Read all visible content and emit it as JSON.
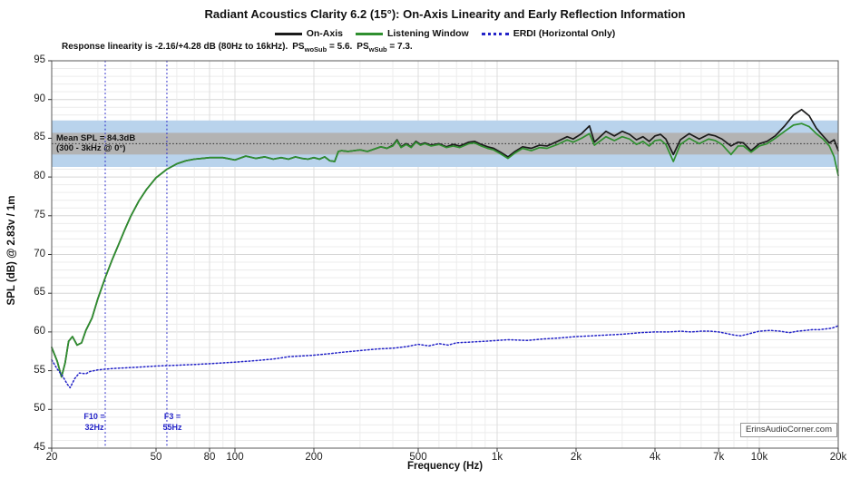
{
  "header": {
    "title": "Radiant Acoustics Clarity 6.2 (15°): On-Axis Linearity and Early Reflection Information"
  },
  "legend": {
    "items": [
      {
        "label": "On-Axis",
        "color": "#1b1b1b",
        "style": "solid"
      },
      {
        "label": "Listening Window",
        "color": "#2f8f2f",
        "style": "solid"
      },
      {
        "label": "ERDI (Horizontal Only)",
        "color": "#2424c8",
        "style": "dotted"
      }
    ]
  },
  "annotation": {
    "prefix": "Response linearity is -2.16/+4.28 dB (80Hz to 16kHz). ",
    "ps1_base": "PS",
    "ps1_sub": "woSub",
    "ps1_value": " = 5.6. ",
    "ps2_base": "PS",
    "ps2_sub": "wSub",
    "ps2_value": " = 7.3."
  },
  "watermark": "ErinsAudioCorner.com",
  "axes": {
    "x_title": "Frequency (Hz)",
    "y_title": "SPL (dB) @ 2.83v / 1m"
  },
  "chart_data": {
    "type": "line",
    "title": "Radiant Acoustics Clarity 6.2 (15°): On-Axis Linearity and Early Reflection Information",
    "xlabel": "Frequency (Hz)",
    "ylabel": "SPL (dB) @ 2.83v / 1m",
    "x_scale": "log",
    "xlim": [
      20,
      20000
    ],
    "ylim": [
      45,
      95
    ],
    "grid": true,
    "legend_position": "top-center",
    "x_ticks": [
      {
        "f": 20,
        "label": "20"
      },
      {
        "f": 50,
        "label": "50"
      },
      {
        "f": 80,
        "label": "80"
      },
      {
        "f": 100,
        "label": "100"
      },
      {
        "f": 200,
        "label": "200"
      },
      {
        "f": 500,
        "label": "500"
      },
      {
        "f": 1000,
        "label": "1k"
      },
      {
        "f": 2000,
        "label": "2k"
      },
      {
        "f": 4000,
        "label": "4k"
      },
      {
        "f": 7000,
        "label": "7k"
      },
      {
        "f": 10000,
        "label": "10k"
      },
      {
        "f": 20000,
        "label": "20k"
      }
    ],
    "y_ticks": [
      {
        "v": 95,
        "label": "95"
      },
      {
        "v": 90,
        "label": "90"
      },
      {
        "v": 85,
        "label": "85"
      },
      {
        "v": 80,
        "label": "80"
      },
      {
        "v": 75,
        "label": "75"
      },
      {
        "v": 70,
        "label": "70"
      },
      {
        "v": 65,
        "label": "65"
      },
      {
        "v": 60,
        "label": "60"
      },
      {
        "v": 55,
        "label": "55"
      },
      {
        "v": 50,
        "label": "50"
      },
      {
        "v": 45,
        "label": "45"
      }
    ],
    "bands": [
      {
        "name": "blue-3db-window",
        "color": "#b9d3ec",
        "from": 81.3,
        "to": 87.3
      },
      {
        "name": "gray-linearity-window",
        "color": "#b3b3b3",
        "from": 82.9,
        "to": 85.7
      }
    ],
    "mean_spl": {
      "value": 84.3,
      "label_line1": "Mean SPL = 84.3dB",
      "label_line2": "(300 - 3kHz @ 0°)"
    },
    "f_markers": [
      {
        "freq": 32,
        "line1": "F10 =",
        "line2": "32Hz"
      },
      {
        "freq": 55,
        "line1": "F3 =",
        "line2": "55Hz"
      }
    ],
    "series": [
      {
        "name": "On-Axis",
        "color": "#1b1b1b",
        "style": "solid",
        "width": 1.7,
        "freq": [
          20,
          21,
          21.8,
          22.5,
          23.2,
          24,
          25,
          26,
          27,
          28.5,
          30,
          32,
          34,
          36,
          38,
          40,
          43,
          46,
          50,
          55,
          60,
          65,
          70,
          75,
          80,
          90,
          100,
          110,
          120,
          130,
          140,
          150,
          160,
          170,
          180,
          190,
          200,
          210,
          220,
          230,
          240,
          248,
          255,
          270,
          285,
          300,
          320,
          340,
          360,
          380,
          400,
          415,
          430,
          450,
          470,
          490,
          510,
          530,
          560,
          600,
          640,
          680,
          720,
          780,
          820,
          870,
          920,
          970,
          1030,
          1100,
          1170,
          1250,
          1350,
          1450,
          1550,
          1700,
          1850,
          1950,
          2100,
          2250,
          2350,
          2600,
          2800,
          3000,
          3200,
          3400,
          3600,
          3800,
          4000,
          4200,
          4400,
          4700,
          5000,
          5400,
          5900,
          6400,
          6800,
          7200,
          7800,
          8300,
          8700,
          9300,
          10000,
          10700,
          11500,
          12500,
          13500,
          14500,
          15500,
          16500,
          17500,
          18500,
          19300,
          20000
        ],
        "spl": [
          58.0,
          56.2,
          54.2,
          56.0,
          58.8,
          59.4,
          58.3,
          58.6,
          60.2,
          61.8,
          64.3,
          67.0,
          69.3,
          71.3,
          73.2,
          74.9,
          76.9,
          78.4,
          79.9,
          81.0,
          81.7,
          82.1,
          82.3,
          82.4,
          82.5,
          82.5,
          82.2,
          82.7,
          82.4,
          82.6,
          82.3,
          82.5,
          82.3,
          82.6,
          82.4,
          82.3,
          82.5,
          82.3,
          82.6,
          82.1,
          82.0,
          83.3,
          83.4,
          83.3,
          83.4,
          83.5,
          83.3,
          83.6,
          83.9,
          83.7,
          84.1,
          84.8,
          83.9,
          84.3,
          83.9,
          84.6,
          84.2,
          84.4,
          84.1,
          84.3,
          83.9,
          84.2,
          84.0,
          84.5,
          84.6,
          84.2,
          83.9,
          83.7,
          83.2,
          82.6,
          83.3,
          83.9,
          83.7,
          84.1,
          84.0,
          84.6,
          85.2,
          84.9,
          85.6,
          86.6,
          84.5,
          85.9,
          85.3,
          85.9,
          85.5,
          84.8,
          85.2,
          84.6,
          85.3,
          85.5,
          84.9,
          82.9,
          84.8,
          85.6,
          84.9,
          85.5,
          85.3,
          84.9,
          84.0,
          84.5,
          84.4,
          83.4,
          84.3,
          84.6,
          85.3,
          86.6,
          88.0,
          88.7,
          87.9,
          86.3,
          85.3,
          84.4,
          84.8,
          83.4
        ]
      },
      {
        "name": "Listening Window",
        "color": "#2f8f2f",
        "style": "solid",
        "width": 1.7,
        "freq": [
          20,
          21,
          21.8,
          22.5,
          23.2,
          24,
          25,
          26,
          27,
          28.5,
          30,
          32,
          34,
          36,
          38,
          40,
          43,
          46,
          50,
          55,
          60,
          65,
          70,
          75,
          80,
          90,
          100,
          110,
          120,
          130,
          140,
          150,
          160,
          170,
          180,
          190,
          200,
          210,
          220,
          230,
          240,
          248,
          255,
          270,
          285,
          300,
          320,
          340,
          360,
          380,
          400,
          415,
          430,
          450,
          470,
          490,
          510,
          530,
          560,
          600,
          640,
          680,
          720,
          780,
          820,
          870,
          920,
          970,
          1030,
          1100,
          1170,
          1250,
          1350,
          1450,
          1550,
          1700,
          1850,
          1950,
          2100,
          2250,
          2350,
          2600,
          2800,
          3000,
          3200,
          3400,
          3600,
          3800,
          4000,
          4200,
          4400,
          4700,
          5000,
          5400,
          5900,
          6400,
          6800,
          7200,
          7800,
          8300,
          8700,
          9300,
          10000,
          10700,
          11500,
          12500,
          13500,
          14500,
          15500,
          16500,
          17500,
          18500,
          19300,
          20000
        ],
        "spl": [
          58.0,
          56.2,
          54.2,
          56.0,
          58.8,
          59.4,
          58.3,
          58.6,
          60.2,
          61.8,
          64.3,
          67.0,
          69.3,
          71.3,
          73.2,
          74.9,
          76.9,
          78.4,
          79.9,
          81.0,
          81.7,
          82.1,
          82.3,
          82.4,
          82.5,
          82.5,
          82.2,
          82.7,
          82.4,
          82.6,
          82.3,
          82.5,
          82.3,
          82.6,
          82.4,
          82.3,
          82.5,
          82.3,
          82.6,
          82.1,
          82.0,
          83.3,
          83.4,
          83.3,
          83.4,
          83.5,
          83.3,
          83.6,
          83.9,
          83.7,
          84.0,
          84.7,
          83.8,
          84.2,
          83.8,
          84.5,
          84.1,
          84.3,
          84.0,
          84.2,
          83.8,
          84.0,
          83.8,
          84.3,
          84.4,
          84.0,
          83.7,
          83.5,
          83.0,
          82.4,
          83.1,
          83.7,
          83.4,
          83.8,
          83.7,
          84.2,
          84.8,
          84.5,
          85.0,
          85.6,
          84.1,
          85.2,
          84.7,
          85.2,
          84.9,
          84.2,
          84.6,
          84.0,
          84.7,
          84.8,
          84.2,
          82.0,
          84.2,
          85.0,
          84.3,
          84.9,
          84.7,
          84.2,
          82.9,
          84.0,
          84.0,
          83.2,
          84.0,
          84.3,
          85.0,
          85.9,
          86.7,
          86.9,
          86.5,
          85.6,
          84.9,
          84.0,
          82.6,
          80.2
        ]
      },
      {
        "name": "ERDI (Horizontal Only)",
        "color": "#2424c8",
        "style": "dotted",
        "width": 1.5,
        "freq": [
          20,
          21,
          22,
          23,
          23.5,
          24.5,
          25.5,
          27,
          28,
          30,
          32,
          35,
          40,
          45,
          50,
          60,
          70,
          80,
          90,
          100,
          120,
          140,
          160,
          180,
          200,
          230,
          260,
          300,
          350,
          400,
          450,
          500,
          550,
          600,
          650,
          700,
          800,
          900,
          1000,
          1100,
          1300,
          1500,
          1700,
          2000,
          2300,
          2600,
          3000,
          3500,
          4000,
          4500,
          5000,
          5500,
          6000,
          6500,
          7000,
          7500,
          8000,
          8500,
          9000,
          10000,
          11000,
          12000,
          13000,
          14000,
          15000,
          16000,
          17000,
          18000,
          19000,
          20000
        ],
        "spl": [
          56.4,
          55.2,
          54.3,
          53.2,
          52.8,
          54.0,
          54.7,
          54.6,
          54.9,
          55.1,
          55.2,
          55.3,
          55.4,
          55.5,
          55.6,
          55.7,
          55.8,
          55.9,
          56.0,
          56.1,
          56.3,
          56.5,
          56.8,
          56.9,
          57.0,
          57.2,
          57.4,
          57.6,
          57.8,
          57.9,
          58.1,
          58.4,
          58.2,
          58.5,
          58.3,
          58.6,
          58.7,
          58.8,
          58.9,
          59.0,
          58.9,
          59.1,
          59.2,
          59.4,
          59.5,
          59.6,
          59.7,
          59.9,
          60.0,
          60.0,
          60.1,
          60.0,
          60.1,
          60.1,
          60.0,
          59.8,
          59.6,
          59.5,
          59.7,
          60.1,
          60.2,
          60.1,
          59.9,
          60.1,
          60.2,
          60.3,
          60.3,
          60.4,
          60.5,
          60.8
        ]
      }
    ]
  }
}
